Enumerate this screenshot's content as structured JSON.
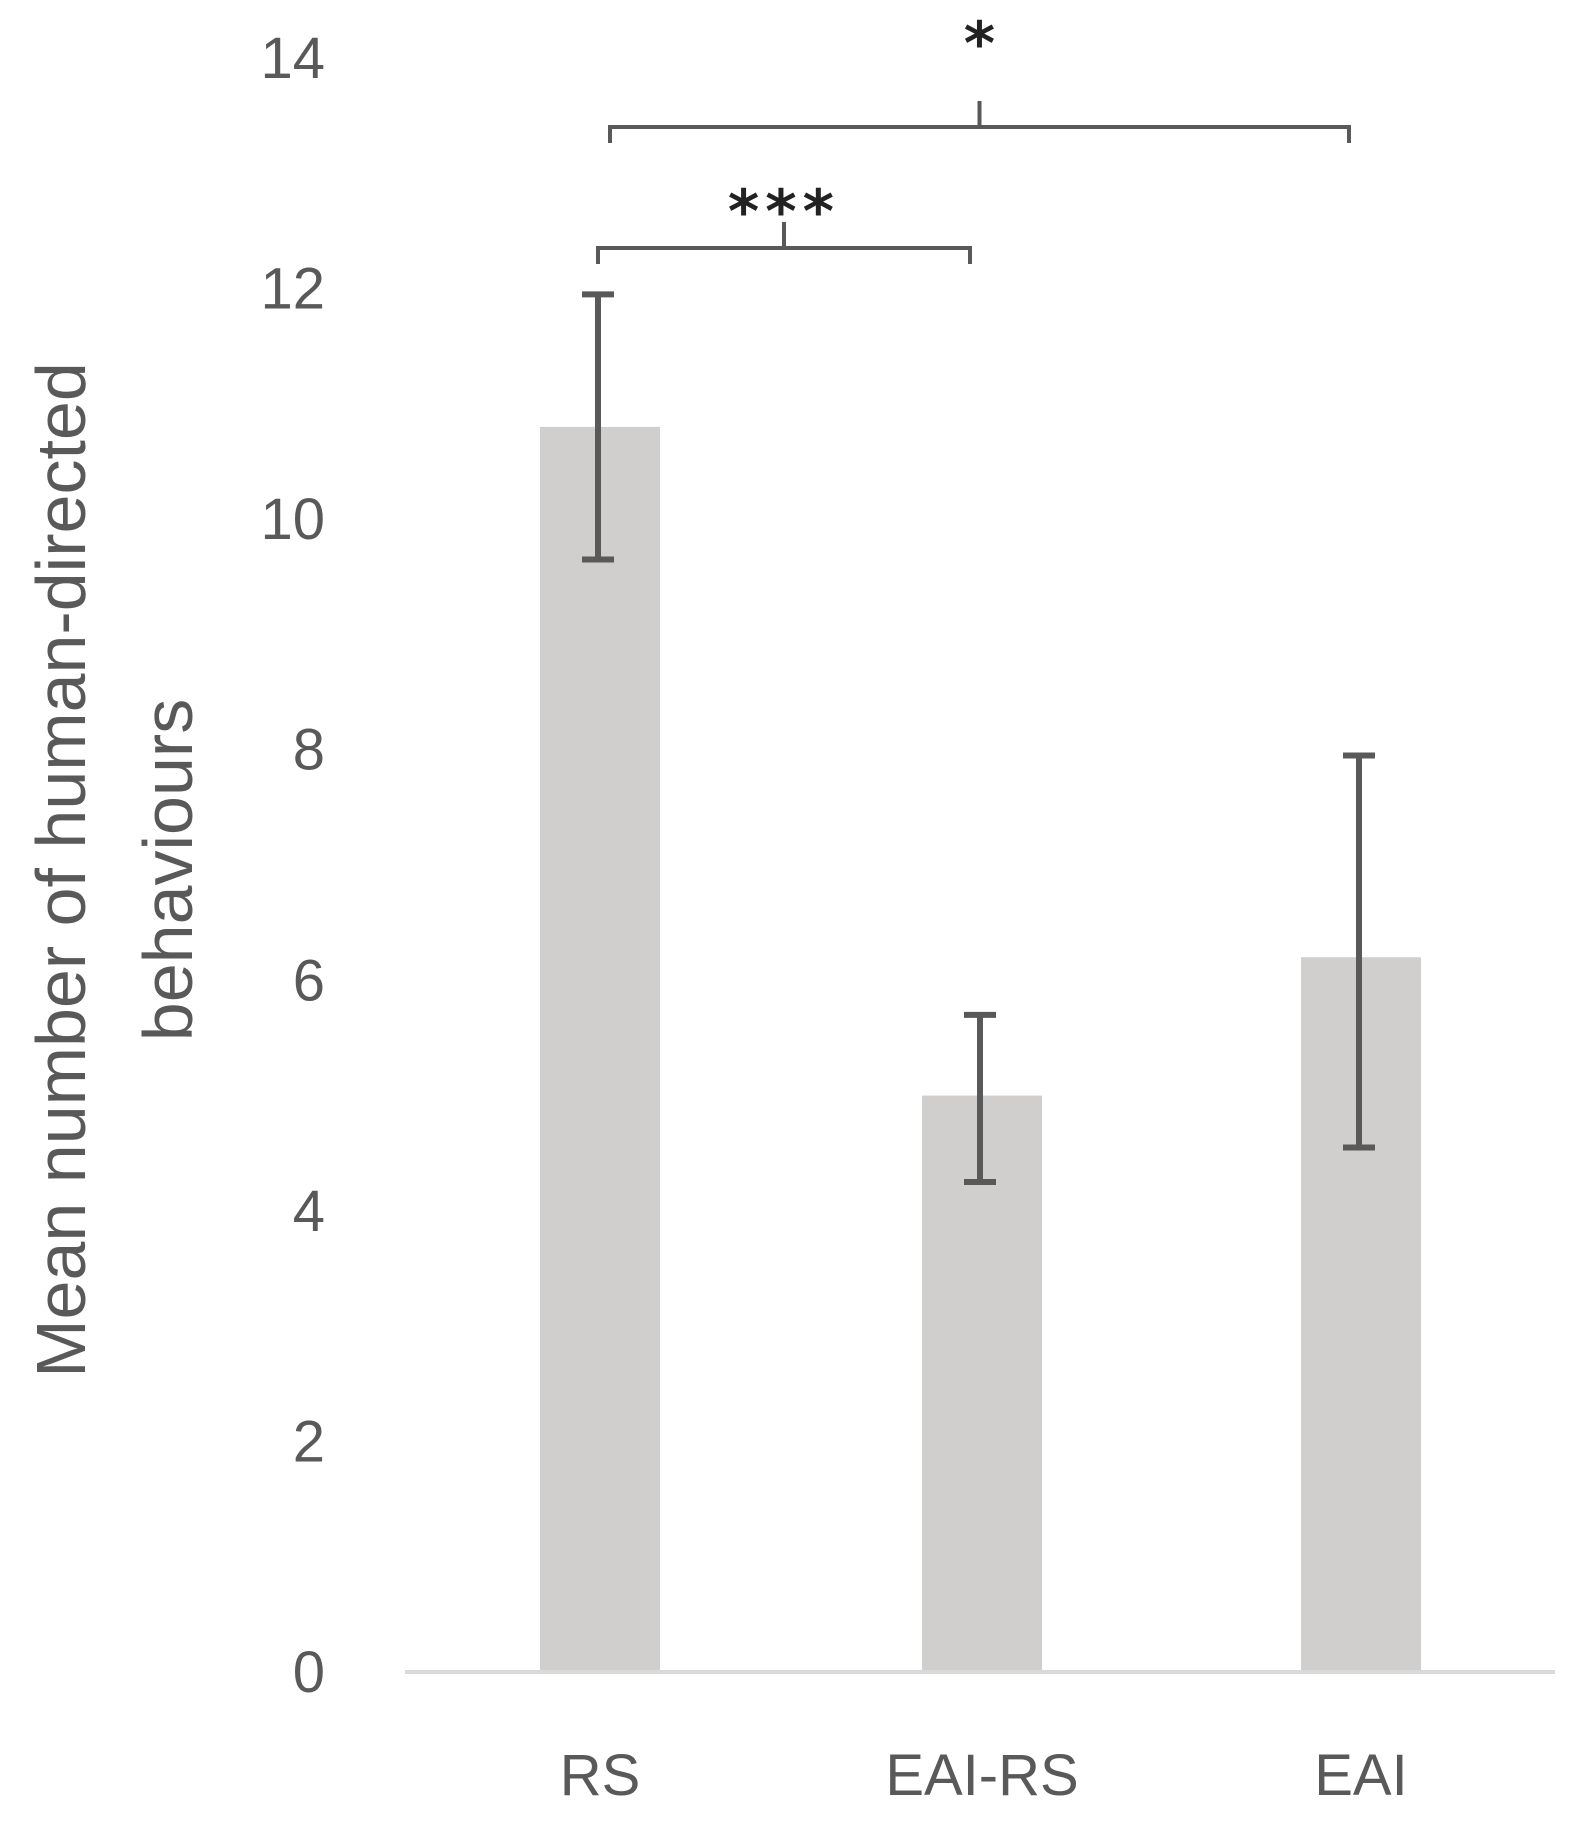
{
  "chart_data": {
    "type": "bar",
    "title": "",
    "xlabel": "",
    "ylabel_lines": [
      "Mean number of human-directed",
      "behaviours"
    ],
    "categories": [
      "RS",
      "EAI-RS",
      "EAI"
    ],
    "values": [
      10.8,
      5.0,
      6.2
    ],
    "error_bars": [
      {
        "low": 9.65,
        "high": 11.95
      },
      {
        "low": 4.25,
        "high": 5.7
      },
      {
        "low": 4.55,
        "high": 7.95
      }
    ],
    "ylim": [
      0,
      14
    ],
    "yticks": [
      0,
      2,
      4,
      6,
      8,
      10,
      12,
      14
    ],
    "grid": false,
    "legend": "none",
    "bar_color": "#d0cfcd",
    "error_color": "#595959",
    "axis_color": "#d9d9d9",
    "text_color": "#595959",
    "significance": [
      {
        "from": "RS",
        "to": "EAI-RS",
        "label": "***"
      },
      {
        "from": "RS",
        "to": "EAI",
        "label": "*"
      }
    ]
  }
}
